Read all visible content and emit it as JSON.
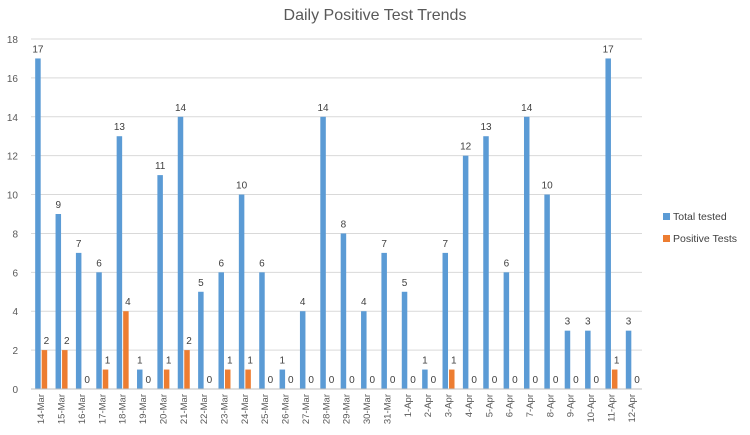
{
  "chart_data": {
    "type": "bar",
    "title": "Daily Positive Test Trends",
    "xlabel": "",
    "ylabel": "",
    "ylim": [
      0,
      18
    ],
    "yticks": [
      0,
      2,
      4,
      6,
      8,
      10,
      12,
      14,
      16,
      18
    ],
    "grid": true,
    "legend_position": "right",
    "categories": [
      "14-Mar",
      "15-Mar",
      "16-Mar",
      "17-Mar",
      "18-Mar",
      "19-Mar",
      "20-Mar",
      "21-Mar",
      "22-Mar",
      "23-Mar",
      "24-Mar",
      "25-Mar",
      "26-Mar",
      "27-Mar",
      "28-Mar",
      "29-Mar",
      "30-Mar",
      "31-Mar",
      "1-Apr",
      "2-Apr",
      "3-Apr",
      "4-Apr",
      "5-Apr",
      "6-Apr",
      "7-Apr",
      "8-Apr",
      "9-Apr",
      "10-Apr",
      "11-Apr",
      "12-Apr"
    ],
    "series": [
      {
        "name": "Total tested",
        "color": "#5B9BD5",
        "values": [
          17,
          9,
          7,
          6,
          13,
          1,
          11,
          14,
          5,
          6,
          10,
          6,
          1,
          4,
          14,
          8,
          4,
          7,
          5,
          1,
          7,
          12,
          13,
          6,
          14,
          10,
          3,
          3,
          17,
          3
        ]
      },
      {
        "name": "Positive Tests",
        "color": "#ED7D31",
        "values": [
          2,
          2,
          0,
          1,
          4,
          0,
          1,
          2,
          0,
          1,
          1,
          0,
          0,
          0,
          0,
          0,
          0,
          0,
          0,
          0,
          1,
          0,
          0,
          0,
          0,
          0,
          0,
          0,
          1,
          0
        ]
      }
    ]
  }
}
